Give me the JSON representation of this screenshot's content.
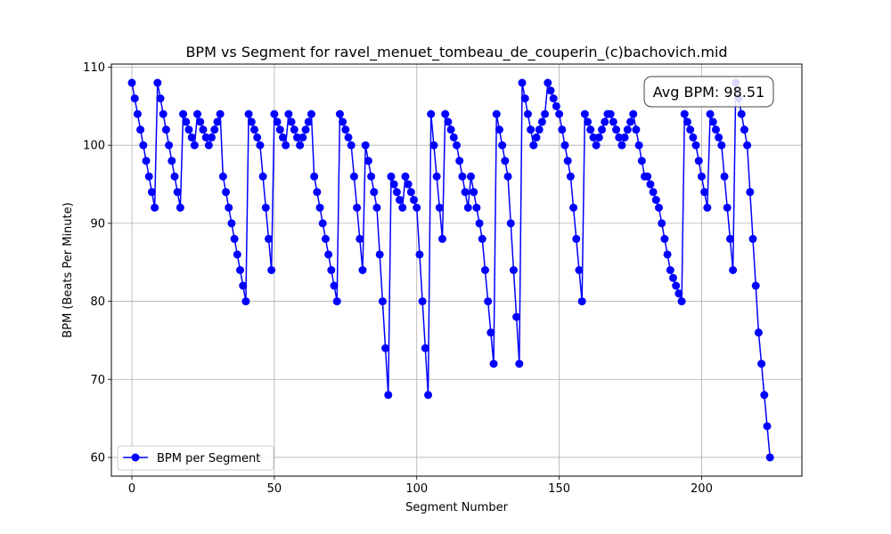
{
  "chart_data": {
    "type": "line",
    "title": "BPM vs Segment for ravel_menuet_tombeau_de_couperin_(c)bachovich.mid",
    "xlabel": "Segment Number",
    "ylabel": "BPM (Beats Per Minute)",
    "xlim": [
      -7.2,
      235.2
    ],
    "ylim": [
      57.6,
      110.4
    ],
    "xticks": [
      0,
      50,
      100,
      150,
      200
    ],
    "yticks": [
      60,
      70,
      80,
      90,
      100,
      110
    ],
    "grid": true,
    "legend_position": "bottom-left",
    "annotation": "Avg BPM: 98.51",
    "series": [
      {
        "name": "BPM per Segment",
        "color": "#0000ff",
        "marker": "circle",
        "values": [
          108,
          106,
          104,
          102,
          100,
          98,
          96,
          94,
          92,
          108,
          106,
          104,
          102,
          100,
          98,
          96,
          94,
          92,
          104,
          103,
          102,
          101,
          100,
          104,
          103,
          102,
          101,
          100,
          101,
          102,
          103,
          104,
          96,
          94,
          92,
          90,
          88,
          86,
          84,
          82,
          80,
          104,
          103,
          102,
          101,
          100,
          96,
          92,
          88,
          84,
          104,
          103,
          102,
          101,
          100,
          104,
          103,
          102,
          101,
          100,
          101,
          102,
          103,
          104,
          96,
          94,
          92,
          90,
          88,
          86,
          84,
          82,
          80,
          104,
          103,
          102,
          101,
          100,
          96,
          92,
          88,
          84,
          100,
          98,
          96,
          94,
          92,
          86,
          80,
          74,
          68,
          96,
          95,
          94,
          93,
          92,
          96,
          95,
          94,
          93,
          92,
          86,
          80,
          74,
          68,
          104,
          100,
          96,
          92,
          88,
          104,
          103,
          102,
          101,
          100,
          98,
          96,
          94,
          92,
          96,
          94,
          92,
          90,
          88,
          84,
          80,
          76,
          72,
          104,
          102,
          100,
          98,
          96,
          90,
          84,
          78,
          72,
          108,
          106,
          104,
          102,
          100,
          101,
          102,
          103,
          104,
          108,
          107,
          106,
          105,
          104,
          102,
          100,
          98,
          96,
          92,
          88,
          84,
          80,
          104,
          103,
          102,
          101,
          100,
          101,
          102,
          103,
          104,
          104,
          103,
          102,
          101,
          100,
          101,
          102,
          103,
          104,
          102,
          100,
          98,
          96,
          96,
          95,
          94,
          93,
          92,
          90,
          88,
          86,
          84,
          83,
          82,
          81,
          80,
          104,
          103,
          102,
          101,
          100,
          98,
          96,
          94,
          92,
          104,
          103,
          102,
          101,
          100,
          96,
          92,
          88,
          84,
          108,
          106,
          104,
          102,
          100,
          94,
          88,
          82,
          76,
          72,
          68,
          64,
          60
        ]
      }
    ]
  }
}
